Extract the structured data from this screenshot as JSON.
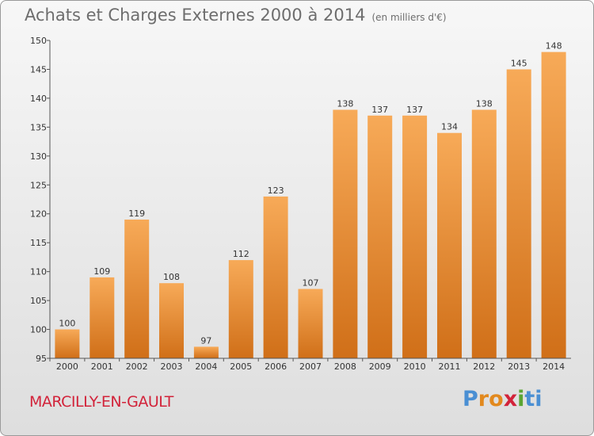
{
  "title": "Achats et Charges Externes 2000 à 2014",
  "unit": "(en milliers d'€)",
  "commune": "MARCILLY-EN-GAULT",
  "logo": {
    "letters": [
      "P",
      "r",
      "o",
      "x",
      "i",
      "t",
      "i"
    ],
    "colors": [
      "#4a8fd3",
      "#e2891e",
      "#e2891e",
      "#d2233a",
      "#5aa532",
      "#4a8fd3",
      "#4a8fd3"
    ]
  },
  "colors": {
    "bar_top": "#f7aa58",
    "bar_bottom": "#d06f18",
    "axis": "#555555"
  },
  "chart_data": {
    "type": "bar",
    "title": "Achats et Charges Externes 2000 à 2014",
    "subtitle": "(en milliers d'€)",
    "categories": [
      "2000",
      "2001",
      "2002",
      "2003",
      "2004",
      "2005",
      "2006",
      "2007",
      "2008",
      "2009",
      "2010",
      "2011",
      "2012",
      "2013",
      "2014"
    ],
    "values": [
      100,
      109,
      119,
      108,
      97,
      112,
      123,
      107,
      138,
      137,
      137,
      134,
      138,
      145,
      148
    ],
    "ylim": [
      95,
      150
    ],
    "yticks": [
      95,
      100,
      105,
      110,
      115,
      120,
      125,
      130,
      135,
      140,
      145,
      150
    ],
    "xlabel": "",
    "ylabel": "",
    "grid": false
  }
}
